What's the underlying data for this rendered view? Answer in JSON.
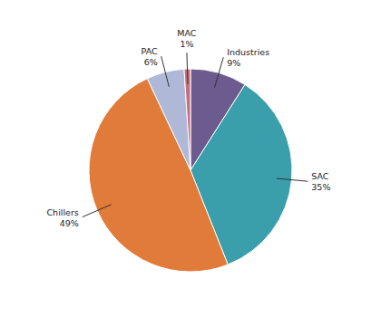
{
  "chart_data": {
    "type": "pie",
    "categories": [
      "Industries",
      "SAC",
      "Chillers",
      "PAC",
      "MAC"
    ],
    "values": [
      9,
      35,
      49,
      6,
      1
    ],
    "value_labels": [
      "9%",
      "35%",
      "49%",
      "6%",
      "1%"
    ],
    "colors": [
      "#6b5b8e",
      "#3a9eab",
      "#e07b39",
      "#b0b8d8",
      "#c47080"
    ],
    "data_labels": true
  }
}
